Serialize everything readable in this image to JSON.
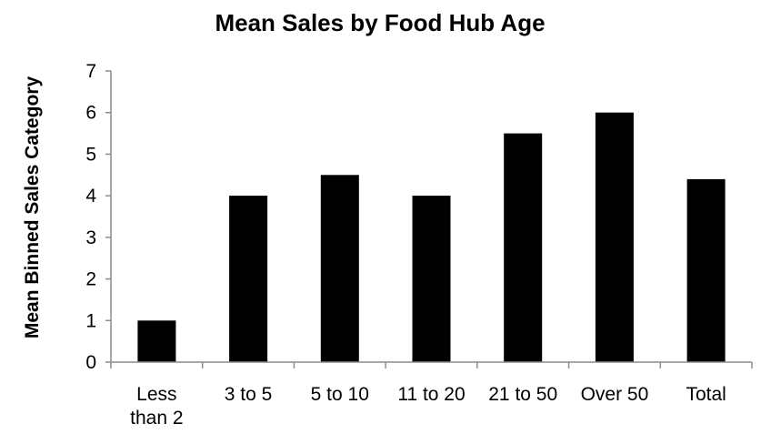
{
  "chart_data": {
    "type": "bar",
    "title": "Mean Sales by Food Hub Age",
    "xlabel": "",
    "ylabel": "Mean Binned Sales Category",
    "categories": [
      [
        "Less",
        "than 2"
      ],
      [
        "3 to 5"
      ],
      [
        "5 to 10"
      ],
      [
        "11 to 20"
      ],
      [
        "21 to 50"
      ],
      [
        "Over 50"
      ],
      [
        "Total"
      ]
    ],
    "values": [
      1.0,
      4.0,
      4.5,
      4.0,
      5.5,
      6.0,
      4.4
    ],
    "ylim": [
      0,
      7
    ],
    "yticks": [
      "0",
      "1",
      "2",
      "3",
      "4",
      "5",
      "6",
      "7"
    ],
    "grid": false,
    "legend": "none",
    "colors": {
      "bar": "#000000",
      "axis": "#8c8c8c",
      "text": "#000000",
      "background": "#ffffff"
    }
  }
}
